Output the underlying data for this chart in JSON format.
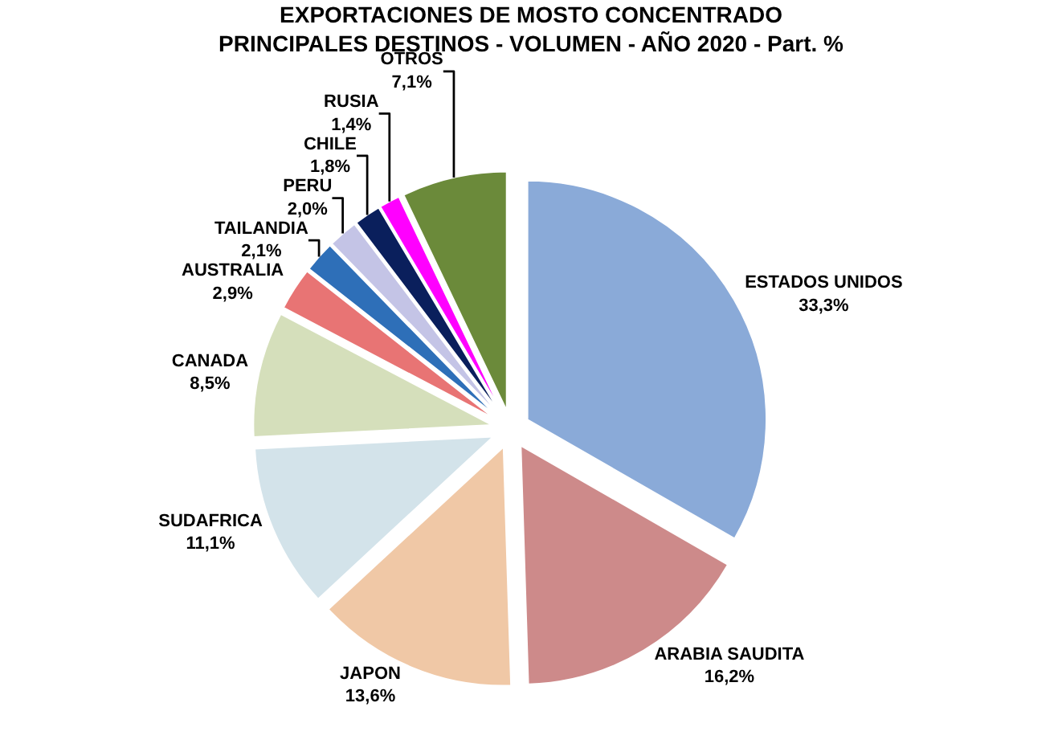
{
  "chart_data": {
    "type": "pie",
    "title": "EXPORTACIONES DE MOSTO CONCENTRADO",
    "subtitle": "PRINCIPALES DESTINOS - VOLUMEN - AÑO 2020 - Part. %",
    "categories": [
      "ESTADOS UNIDOS",
      "ARABIA SAUDITA",
      "JAPON",
      "SUDAFRICA",
      "CANADA",
      "AUSTRALIA",
      "TAILANDIA",
      "PERU",
      "CHILE",
      "RUSIA",
      "OTROS"
    ],
    "values": [
      33.3,
      16.2,
      13.6,
      11.1,
      8.5,
      2.9,
      2.1,
      2.0,
      1.8,
      1.4,
      7.1
    ],
    "value_labels": [
      "33,3%",
      "16,2%",
      "13,6%",
      "11,1%",
      "8,5%",
      "2,9%",
      "2,1%",
      "2,0%",
      "1,8%",
      "1,4%",
      "7,1%"
    ],
    "colors": [
      "#8aaad8",
      "#cd8a8a",
      "#f0c8a6",
      "#d3e3ea",
      "#d5dfbb",
      "#e87474",
      "#2e6fb8",
      "#c4c4e6",
      "#0a1f5c",
      "#ff00ff",
      "#6b8a3a"
    ],
    "legend": false
  }
}
